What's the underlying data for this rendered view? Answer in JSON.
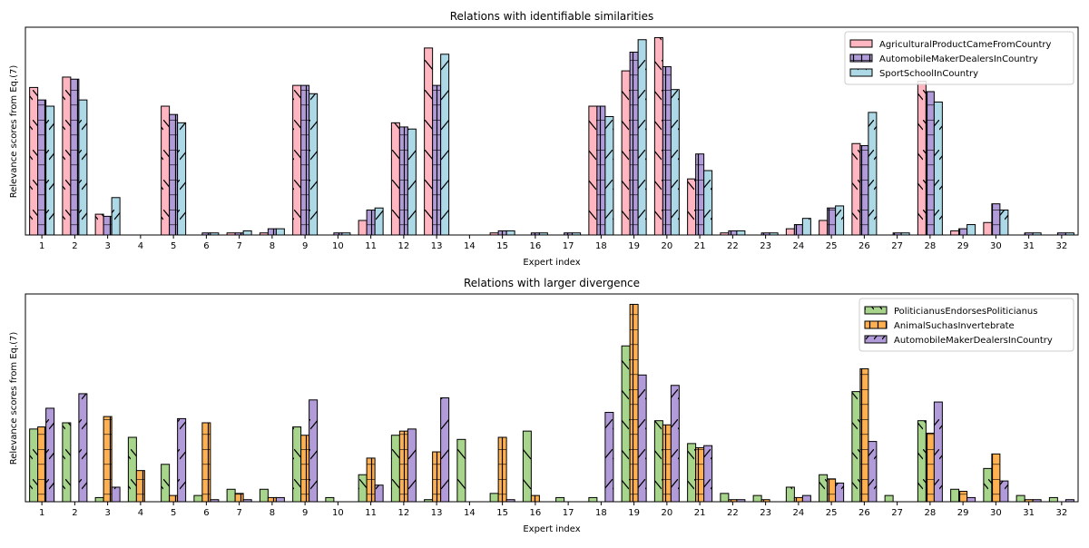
{
  "chart_data": [
    {
      "type": "bar",
      "title": "Relations with identifiable similarities",
      "xlabel": "Expert index",
      "ylabel": "Relevance scores from Eq.(7)",
      "ylim": [
        0,
        1
      ],
      "yticks": "none",
      "grid": false,
      "legend": "top-right",
      "categories": [
        "1",
        "2",
        "3",
        "4",
        "5",
        "6",
        "7",
        "8",
        "9",
        "10",
        "11",
        "12",
        "13",
        "14",
        "15",
        "16",
        "17",
        "18",
        "19",
        "20",
        "21",
        "22",
        "23",
        "24",
        "25",
        "26",
        "27",
        "28",
        "29",
        "30",
        "31",
        "32"
      ],
      "series": [
        {
          "name": "AgriculturalProductCameFromCountry",
          "color": "#ffb6c1",
          "hatch": "backslash",
          "values": [
            0.71,
            0.76,
            0.1,
            0.0,
            0.62,
            0.0,
            0.01,
            0.01,
            0.72,
            0.0,
            0.07,
            0.54,
            0.9,
            0.0,
            0.01,
            0.0,
            0.0,
            0.62,
            0.79,
            0.95,
            0.27,
            0.01,
            0.0,
            0.03,
            0.07,
            0.44,
            0.0,
            0.74,
            0.02,
            0.06,
            0.0,
            0.0
          ]
        },
        {
          "name": "AutomobileMakerDealersInCountry",
          "color": "#b19cd9",
          "hatch": "plus",
          "values": [
            0.65,
            0.75,
            0.09,
            0.0,
            0.58,
            0.01,
            0.01,
            0.03,
            0.72,
            0.01,
            0.12,
            0.52,
            0.72,
            0.0,
            0.02,
            0.01,
            0.01,
            0.62,
            0.88,
            0.81,
            0.39,
            0.02,
            0.01,
            0.05,
            0.13,
            0.43,
            0.01,
            0.69,
            0.03,
            0.15,
            0.01,
            0.01
          ]
        },
        {
          "name": "SportSchoolInCountry",
          "color": "#add8e6",
          "hatch": "slash",
          "values": [
            0.62,
            0.65,
            0.18,
            0.0,
            0.54,
            0.01,
            0.02,
            0.03,
            0.68,
            0.01,
            0.13,
            0.51,
            0.87,
            0.0,
            0.02,
            0.01,
            0.01,
            0.57,
            0.94,
            0.7,
            0.31,
            0.02,
            0.01,
            0.08,
            0.14,
            0.59,
            0.01,
            0.64,
            0.05,
            0.12,
            0.01,
            0.01
          ]
        }
      ]
    },
    {
      "type": "bar",
      "title": "Relations with larger divergence",
      "xlabel": "Expert index",
      "ylabel": "Relevance scores from Eq.(7)",
      "ylim": [
        0,
        1
      ],
      "yticks": "none",
      "grid": false,
      "legend": "top-right",
      "categories": [
        "1",
        "2",
        "3",
        "4",
        "5",
        "6",
        "7",
        "8",
        "9",
        "10",
        "11",
        "12",
        "13",
        "14",
        "15",
        "16",
        "17",
        "18",
        "19",
        "20",
        "21",
        "22",
        "23",
        "24",
        "25",
        "26",
        "27",
        "28",
        "29",
        "30",
        "31",
        "32"
      ],
      "series": [
        {
          "name": "PoliticianusEndorsesPoliticianus",
          "color": "#a8d58c",
          "hatch": "backslash",
          "values": [
            0.35,
            0.38,
            0.02,
            0.31,
            0.18,
            0.03,
            0.06,
            0.06,
            0.36,
            0.02,
            0.13,
            0.32,
            0.01,
            0.3,
            0.04,
            0.34,
            0.02,
            0.02,
            0.75,
            0.39,
            0.28,
            0.04,
            0.03,
            0.07,
            0.13,
            0.53,
            0.03,
            0.39,
            0.06,
            0.16,
            0.03,
            0.02
          ]
        },
        {
          "name": "AnimalSuchasInvertebrate",
          "color": "#ffb050",
          "hatch": "plus",
          "values": [
            0.36,
            0.0,
            0.41,
            0.15,
            0.03,
            0.38,
            0.04,
            0.02,
            0.32,
            0.0,
            0.21,
            0.34,
            0.24,
            0.0,
            0.31,
            0.03,
            0.0,
            0.0,
            0.95,
            0.37,
            0.26,
            0.01,
            0.01,
            0.02,
            0.11,
            0.64,
            0.0,
            0.33,
            0.05,
            0.23,
            0.01,
            0.0
          ]
        },
        {
          "name": "AutomobileMakerDealersInCountry",
          "color": "#b19cd9",
          "hatch": "slash",
          "values": [
            0.45,
            0.52,
            0.07,
            0.0,
            0.4,
            0.01,
            0.01,
            0.02,
            0.49,
            0.0,
            0.08,
            0.35,
            0.5,
            0.0,
            0.01,
            0.0,
            0.0,
            0.43,
            0.61,
            0.56,
            0.27,
            0.01,
            0.0,
            0.03,
            0.09,
            0.29,
            0.0,
            0.48,
            0.02,
            0.1,
            0.01,
            0.01
          ]
        }
      ]
    }
  ]
}
